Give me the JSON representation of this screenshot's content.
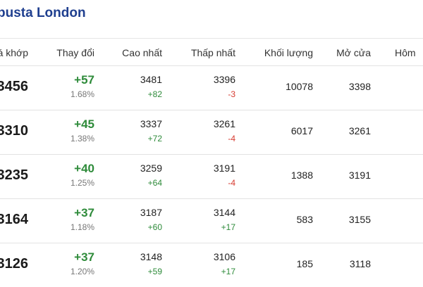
{
  "header": {
    "title": "busta London"
  },
  "columns": [
    "á khớp",
    "Thay đổi",
    "Cao nhất",
    "Thấp nhất",
    "Khối lượng",
    "Mở cửa",
    "Hôm"
  ],
  "rows": [
    {
      "price": "3456",
      "change": "+57",
      "pct": "1.68%",
      "high": "3481",
      "high_chg": "+82",
      "low": "3396",
      "low_chg": "-3",
      "volume": "10078",
      "open": "3398"
    },
    {
      "price": "3310",
      "change": "+45",
      "pct": "1.38%",
      "high": "3337",
      "high_chg": "+72",
      "low": "3261",
      "low_chg": "-4",
      "volume": "6017",
      "open": "3261"
    },
    {
      "price": "3235",
      "change": "+40",
      "pct": "1.25%",
      "high": "3259",
      "high_chg": "+64",
      "low": "3191",
      "low_chg": "-4",
      "volume": "1388",
      "open": "3191"
    },
    {
      "price": "3164",
      "change": "+37",
      "pct": "1.18%",
      "high": "3187",
      "high_chg": "+60",
      "low": "3144",
      "low_chg": "+17",
      "volume": "583",
      "open": "3155"
    },
    {
      "price": "3126",
      "change": "+37",
      "pct": "1.20%",
      "high": "3148",
      "high_chg": "+59",
      "low": "3106",
      "low_chg": "+17",
      "volume": "185",
      "open": "3118"
    }
  ],
  "colors": {
    "title": "#1f3f8f",
    "up": "#2e8b3a",
    "down": "#d63a2f"
  }
}
